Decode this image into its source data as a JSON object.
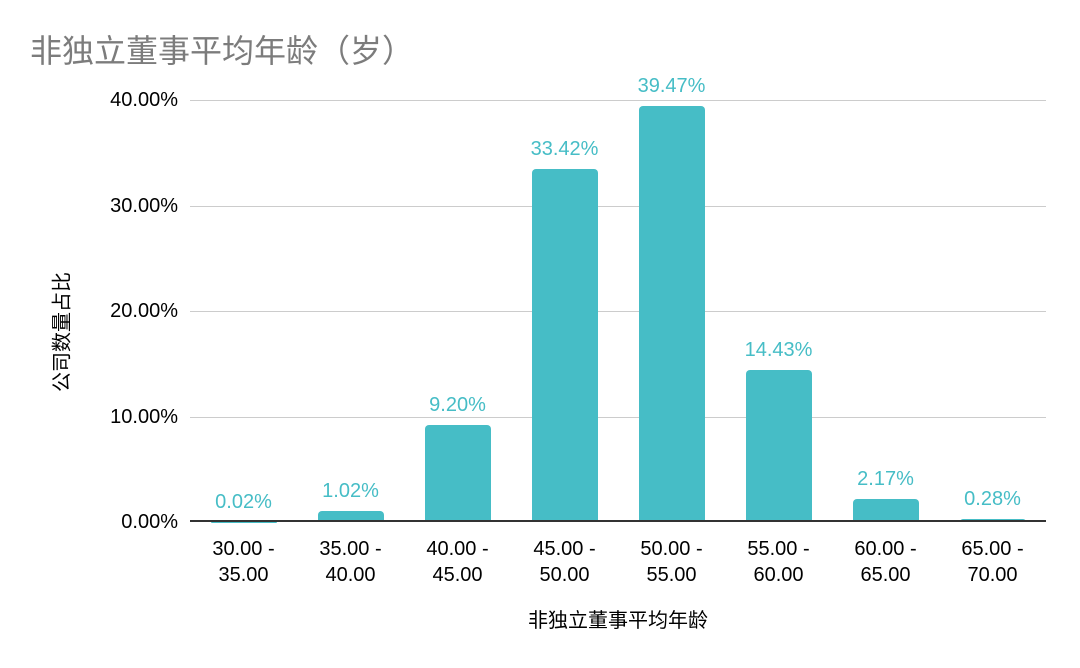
{
  "colors": {
    "bar": "#46bdc6",
    "value_label": "#46bdc6",
    "title_text": "#7c7c7c",
    "axis_text": "#000000",
    "gridline": "#cccccc",
    "baseline": "#333333"
  },
  "chart_data": {
    "type": "bar",
    "title": "非独立董事平均年龄（岁）",
    "xlabel": "非独立董事平均年龄",
    "ylabel": "公司数量占比",
    "categories": [
      "30.00 -\n35.00",
      "35.00 -\n40.00",
      "40.00 -\n45.00",
      "45.00 -\n50.00",
      "50.00 -\n55.00",
      "55.00 -\n60.00",
      "60.00 -\n65.00",
      "65.00 -\n70.00"
    ],
    "values": [
      0.02,
      1.02,
      9.2,
      33.42,
      39.47,
      14.43,
      2.17,
      0.28
    ],
    "value_labels": [
      "0.02%",
      "1.02%",
      "9.20%",
      "33.42%",
      "39.47%",
      "14.43%",
      "2.17%",
      "0.28%"
    ],
    "y_ticks": [
      "40.00%",
      "30.00%",
      "20.00%",
      "10.00%",
      "0.00%"
    ],
    "ylim": [
      0,
      40
    ],
    "grid": true,
    "legend": "none"
  }
}
